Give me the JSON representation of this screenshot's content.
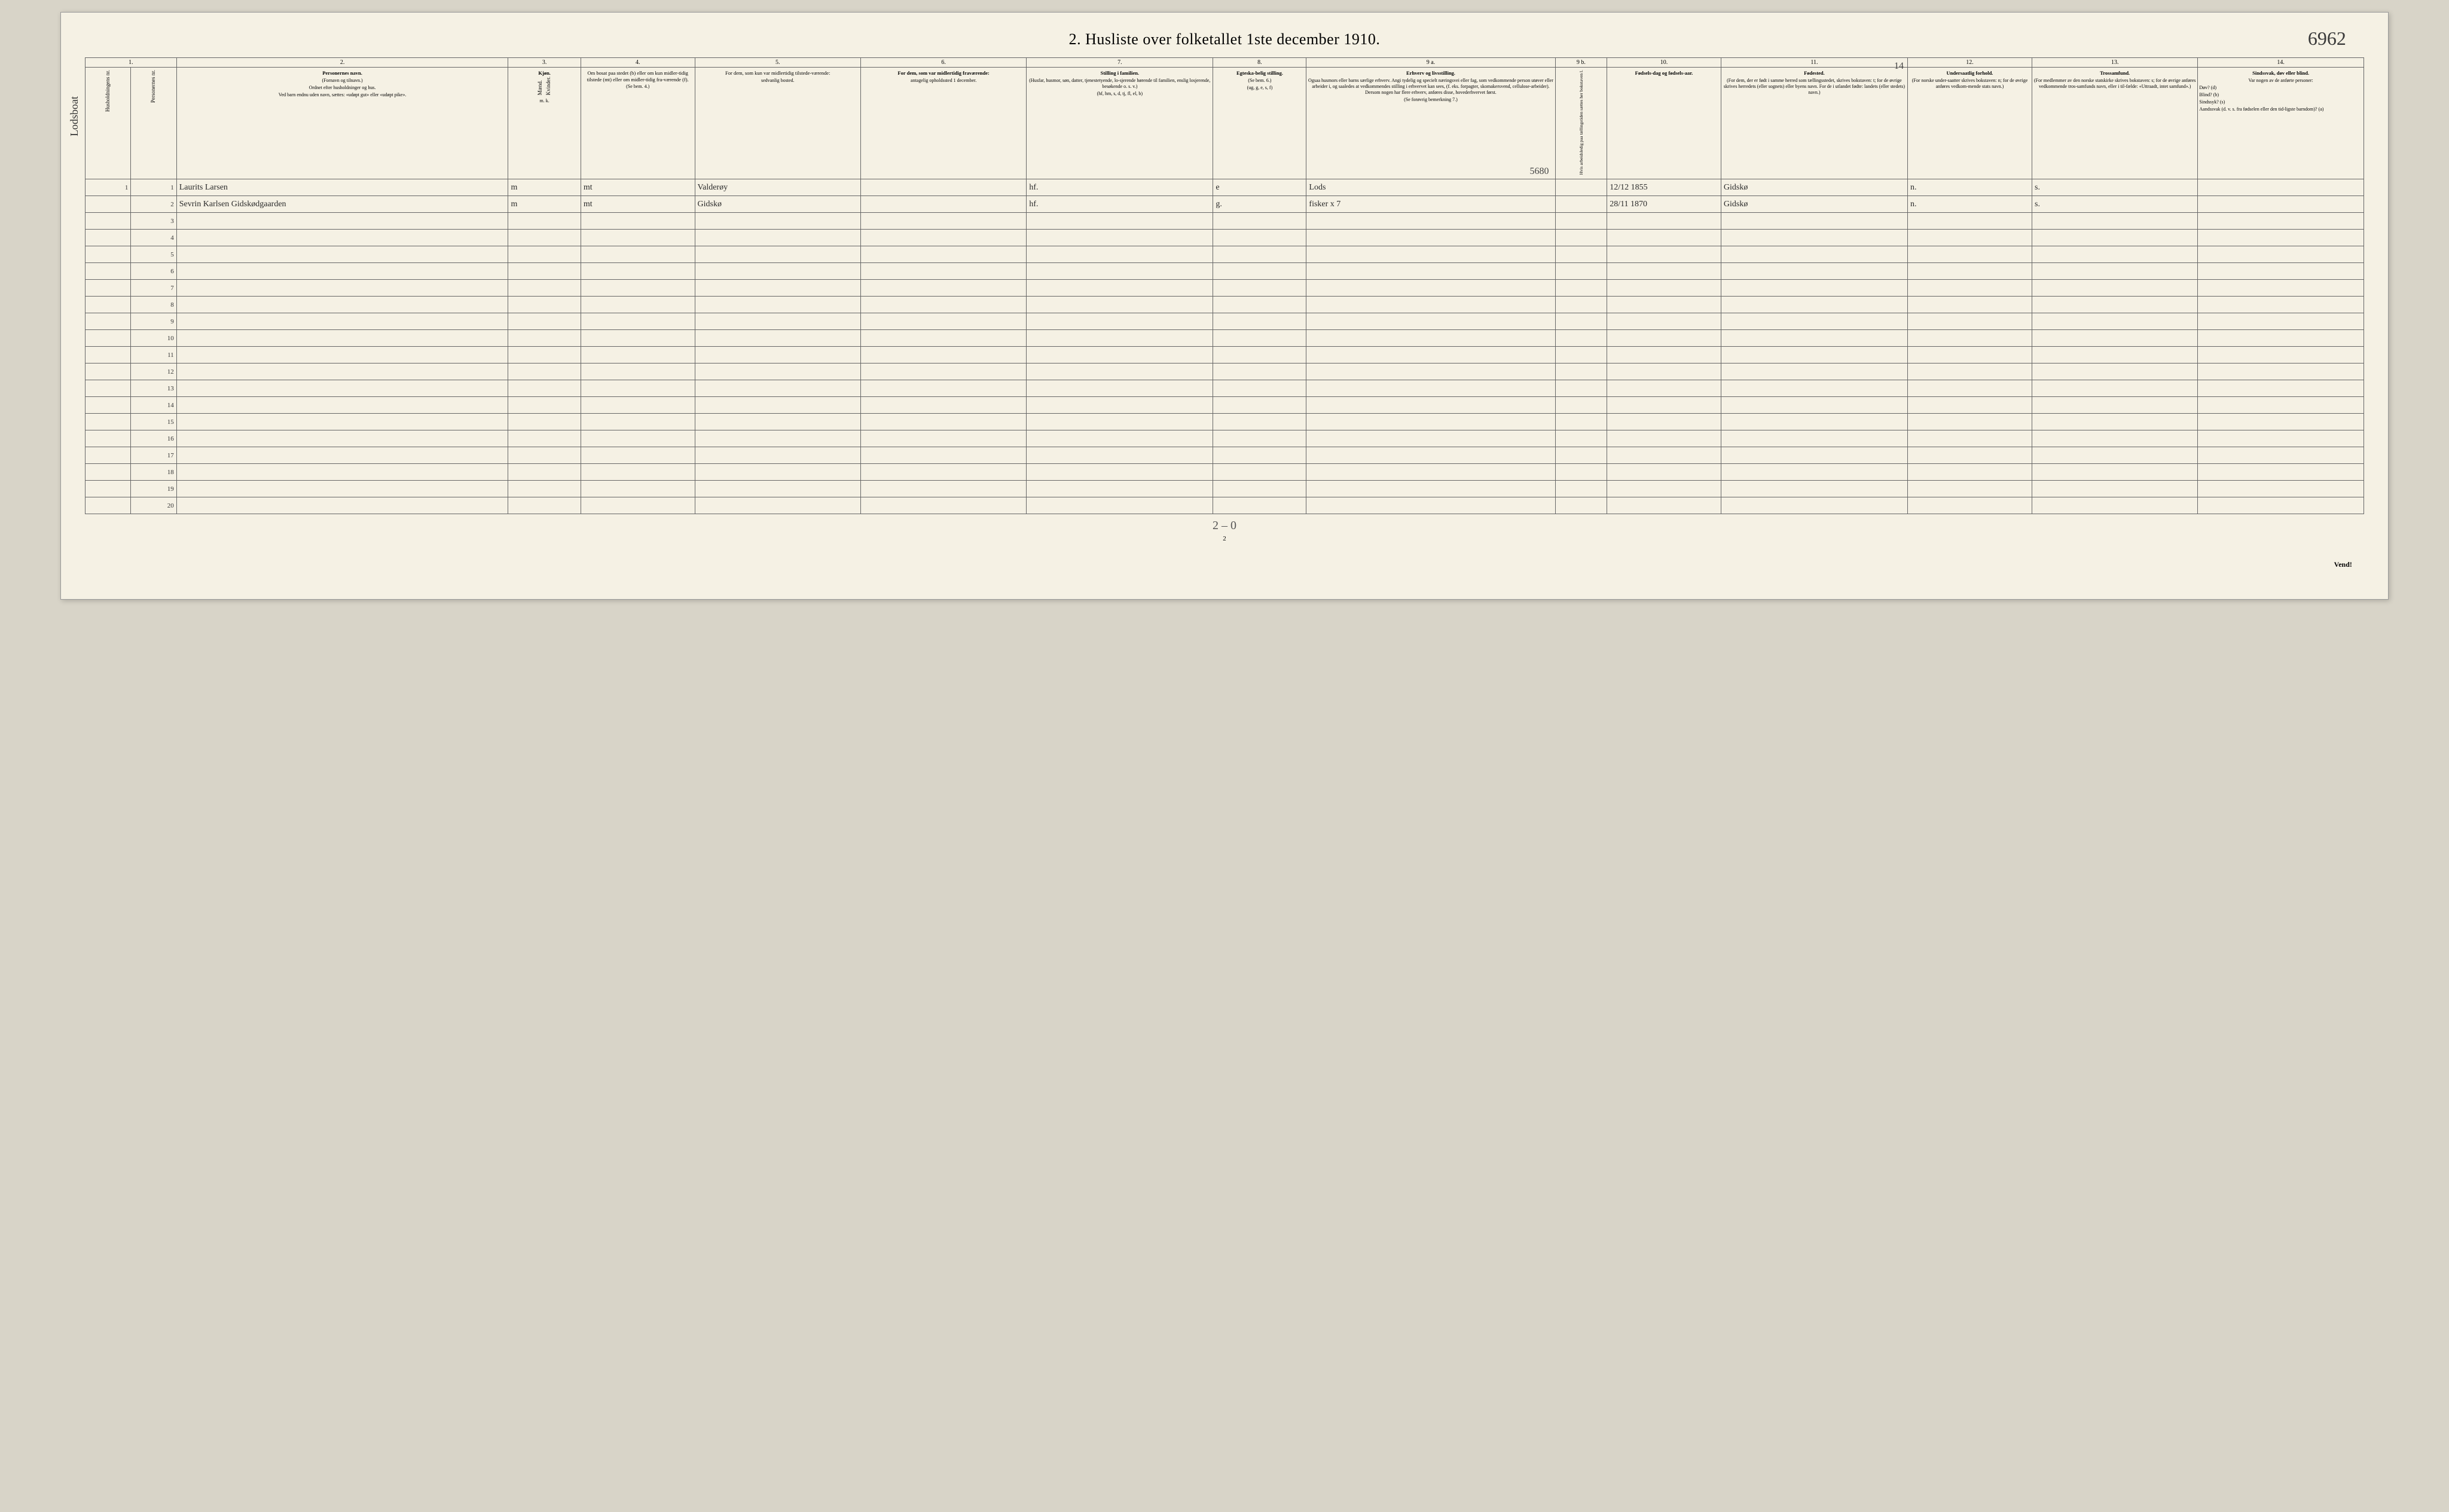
{
  "title": "2.  Husliste over folketallet 1ste december 1910.",
  "handwritten_topright": "6962",
  "left_margin_script": "Lodsboat",
  "col_numbers": [
    "1.",
    "2.",
    "3.",
    "4.",
    "5.",
    "6.",
    "7.",
    "8.",
    "9 a.",
    "9 b.",
    "10.",
    "11.",
    "12.",
    "13.",
    "14."
  ],
  "headers": {
    "c1a": "Husholdningens nr.",
    "c1b": "Personernes nr.",
    "c2_title": "Personernes navn.",
    "c2_sub1": "(Fornavn og tilnavn.)",
    "c2_sub2": "Ordnet efter husholdninger og hus.",
    "c2_sub3": "Ved barn endnu uden navn, sættes: «udøpt gut» eller «udøpt pike».",
    "c3_title": "Kjøn.",
    "c3_m": "Mænd.",
    "c3_k": "Kvinder.",
    "c3_mk": "m.  k.",
    "c4_title": "Om bosat paa stedet (b) eller om kun midler-tidig tilstede (mt) eller om midler-tidig fra-værende (f).",
    "c4_sub": "(Se bem. 4.)",
    "c5_title": "For dem, som kun var midlertidig tilstede-værende:",
    "c5_sub": "sedvanlig bosted.",
    "c6_title": "For dem, som var midlertidig fraværende:",
    "c6_sub": "antagelig opholdssted 1 december.",
    "c7_title": "Stilling i familien.",
    "c7_sub1": "(Husfar, husmor, søn, datter, tjenestetyende, lo-sjerende hørende til familien, enslig losjerende, besøkende o. s. v.)",
    "c7_sub2": "(hf, hm, s, d, tj, fl, el, b)",
    "c8_title": "Egteska-belig stilling.",
    "c8_sub1": "(Se bem. 6.)",
    "c8_sub2": "(ug, g, e, s, f)",
    "c9a_title": "Erhverv og livsstilling.",
    "c9a_sub1": "Ogsaa husmors eller barns særlige erhverv. Angi tydelig og specielt næringsvei eller fag, som vedkommende person utøver eller arbeider i, og saaledes at vedkommendes stilling i erhvervet kan sees, (f. eks. forpagter, skomakersvend, cellulose-arbeider). Dersom nogen har flere erhverv, anføres disse, hovederhvervet først.",
    "c9a_sub2": "(Se forøvrig bemerkning 7.)",
    "c9b_title": "Hvis arbeidsledig paa tællingstiden sættes her bokstaven l.",
    "c10_title": "Fødsels-dag og fødsels-aar.",
    "c11_title": "Fødested.",
    "c11_sub1": "(For dem, der er født i samme herred som tællingsstedet, skrives bokstaven: t; for de øvrige skrives herredets (eller sognets) eller byens navn. For de i utlandet fødte: landets (eller stedets) navn.)",
    "c12_title": "Undersaatlig forhold.",
    "c12_sub1": "(For norske under-saatter skrives bokstaven: n; for de øvrige anføres vedkom-mende stats navn.)",
    "c13_title": "Trossamfund.",
    "c13_sub1": "(For medlemmer av den norske statskirke skrives bokstaven: s; for de øvrige anføres vedkommende tros-samfunds navn, eller i til-fælde: «Uttraadt, intet samfund».)",
    "c14_title": "Sindssvak, døv eller blind.",
    "c14_sub1": "Var nogen av de anførte personer:",
    "c14_sub2": "Døv?        (d)",
    "c14_sub3": "Blind?      (b)",
    "c14_sub4": "Sindssyk?  (s)",
    "c14_sub5": "Aandssvak (d. v. s. fra fødselen eller den tid-ligste barndom)?  (a)"
  },
  "annotations": {
    "mid_9a": "5680",
    "top_11": "14"
  },
  "rows": [
    {
      "num": "1",
      "hh": "1",
      "name": "Laurits Larsen",
      "sex": "m",
      "bosat": "mt",
      "sted5": "Valderøy",
      "c6": "",
      "stilling": "hf.",
      "egte": "e",
      "erhverv": "Lods",
      "c9b": "",
      "fodsel": "12/12 1855",
      "fodested": "Gidskø",
      "under": "n.",
      "tros": "s.",
      "c14": ""
    },
    {
      "num": "2",
      "hh": "",
      "name": "Sevrin Karlsen Gidskødgaarden",
      "sex": "m",
      "bosat": "mt",
      "sted5": "Gidskø",
      "c6": "",
      "stilling": "hf.",
      "egte": "g.",
      "erhverv": "fisker  x 7",
      "c9b": "",
      "fodsel": "28/11 1870",
      "fodested": "Gidskø",
      "under": "n.",
      "tros": "s.",
      "c14": ""
    }
  ],
  "empty_rows": [
    "3",
    "4",
    "5",
    "6",
    "7",
    "8",
    "9",
    "10",
    "11",
    "12",
    "13",
    "14",
    "15",
    "16",
    "17",
    "18",
    "19",
    "20"
  ],
  "bottom_hand": "2 – 0",
  "page_num": "2",
  "vend": "Vend!",
  "colors": {
    "paper": "#f5f1e4",
    "ink": "#2a2a2a",
    "border": "#666"
  },
  "col_widths_pct": [
    2.2,
    2.2,
    16,
    3.5,
    5.5,
    8,
    8,
    9,
    4.5,
    12,
    2.5,
    5.5,
    9,
    6,
    8,
    8
  ]
}
